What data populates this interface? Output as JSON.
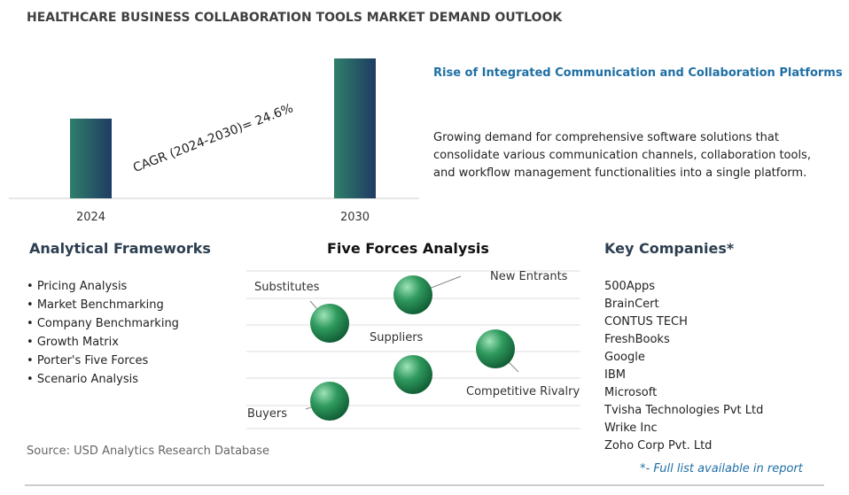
{
  "title": "HEALTHCARE BUSINESS COLLABORATION TOOLS MARKET DEMAND OUTLOOK",
  "bar_chart": {
    "type": "bar",
    "categories": [
      "2024",
      "2030"
    ],
    "values": [
      57,
      100
    ],
    "cagr_label": "CAGR (2024-2030)=  24.6%"
  },
  "highlight": {
    "heading": "Rise of Integrated Communication and Collaboration Platforms",
    "body": "Growing demand for comprehensive software solutions that consolidate various communication channels, collaboration tools, and workflow management functionalities into a single platform."
  },
  "frameworks": {
    "heading": "Analytical Frameworks",
    "items": [
      "Pricing Analysis",
      "Market Benchmarking",
      "Company Benchmarking",
      "Growth Matrix",
      "Porter's Five Forces",
      "Scenario Analysis"
    ]
  },
  "five_forces": {
    "heading": "Five Forces Analysis",
    "forces": [
      "Substitutes",
      "New Entrants",
      "Suppliers",
      "Competitive Rivalry",
      "Buyers"
    ]
  },
  "companies": {
    "heading": "Key Companies*",
    "items": [
      "500Apps",
      "BrainCert",
      "CONTUS TECH",
      "FreshBooks",
      "Google",
      "IBM",
      "Microsoft",
      "Tvisha Technologies Pvt Ltd",
      "Wrike Inc",
      "Zoho Corp Pvt. Ltd"
    ],
    "note": "*- Full list available in report"
  },
  "source": "Source: USD Analytics Research Database"
}
